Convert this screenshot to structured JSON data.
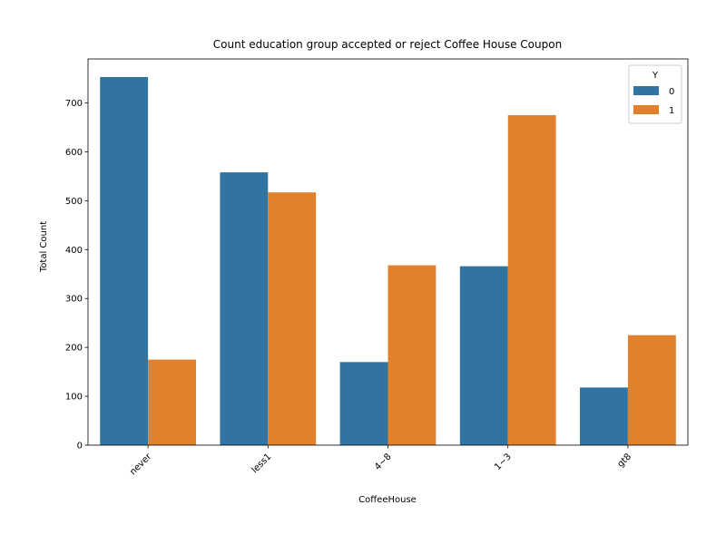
{
  "chart_data": {
    "type": "bar",
    "title": "Count education group accepted or reject Coffee House Coupon",
    "xlabel": "CoffeeHouse",
    "ylabel": "Total Count",
    "categories": [
      "never",
      "less1",
      "4~8",
      "1~3",
      "gt8"
    ],
    "series": [
      {
        "name": "0",
        "values": [
          753,
          558,
          170,
          366,
          118
        ],
        "color": "#3274a1"
      },
      {
        "name": "1",
        "values": [
          175,
          517,
          368,
          675,
          225
        ],
        "color": "#e1812c"
      }
    ],
    "yticks": [
      0,
      100,
      200,
      300,
      400,
      500,
      600,
      700
    ],
    "ylim": [
      0,
      790
    ],
    "legend": {
      "title": "Y",
      "position": "top-right"
    },
    "grid": false
  }
}
